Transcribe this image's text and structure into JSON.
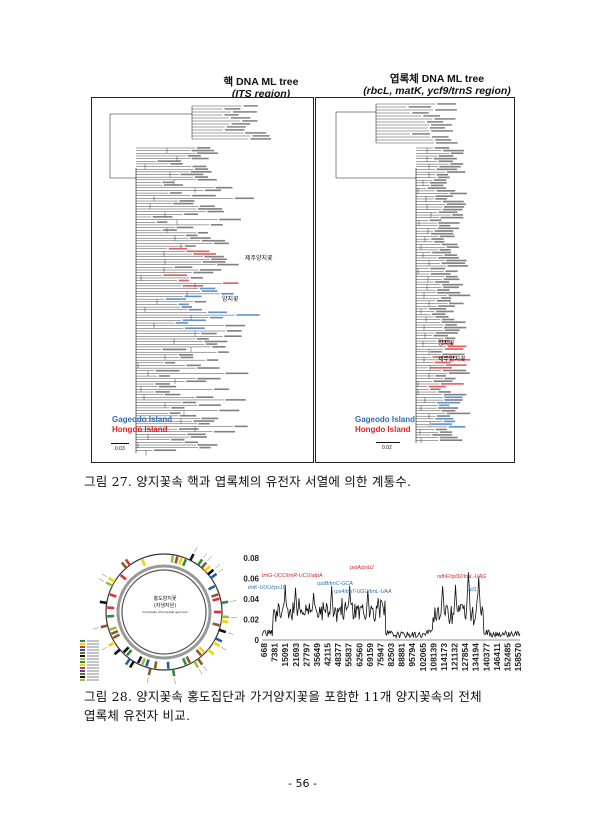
{
  "figure27": {
    "left_tree": {
      "title_line1": "핵 DNA ML tree",
      "title_line2": "(ITS region)",
      "labels": [
        "제주양지꽃",
        "양지꽃"
      ],
      "scale": "0.03",
      "legend_gageodo": "Gageodo Island",
      "legend_hongdo": "Hongdo Island"
    },
    "right_tree": {
      "title_line1": "엽록체 DNA ML tree",
      "title_line2": "(rbcL, matK, ycf9/trnS region)",
      "labels": [
        "양지꽃",
        "제주양지꽃"
      ],
      "scale": "0.02",
      "legend_gageodo": "Gageodo Island",
      "legend_hongdo": "Hongdo Island"
    },
    "caption": "그림 27. 양지꽃속 핵과 엽록체의 유전자 서열에 의한 계통수."
  },
  "figure28": {
    "genome_map": {
      "center_title": "홍도양지꽃",
      "center_subtitle": "(자생자원)",
      "center_meta": "Complete chloroplast genome"
    },
    "chart_data": {
      "type": "line",
      "yticks": [
        "0",
        "0.02",
        "0.04",
        "0.06",
        "0.08"
      ],
      "ylim": [
        0,
        0.08
      ],
      "x": [
        668,
        7381,
        15091,
        21693,
        27797,
        35649,
        42115,
        48377,
        55837,
        62560,
        69159,
        75947,
        82503,
        88881,
        95794,
        102065,
        108139,
        114173,
        121132,
        127854,
        134194,
        140377,
        146411,
        152485,
        158570
      ],
      "annotations_red": [
        "trnG-UCC/trnR-UCU/atpA",
        "petA/psbJ",
        "ndhF/rpl32/trnL-UAG"
      ],
      "annotations_blue": [
        "trnK-UUU/rps16",
        "rpoB/trnC-GCA",
        "rps4/trnT-UGU/trnL-UAA",
        "ycf1"
      ]
    },
    "caption_line1": "그림 28. 양지꽃속 홍도집단과 가거양지꽃을 포함한 11개 양지꽃속의 전체",
    "caption_line2": "엽록체 유전자 비교."
  },
  "page_number": "- 56 -"
}
